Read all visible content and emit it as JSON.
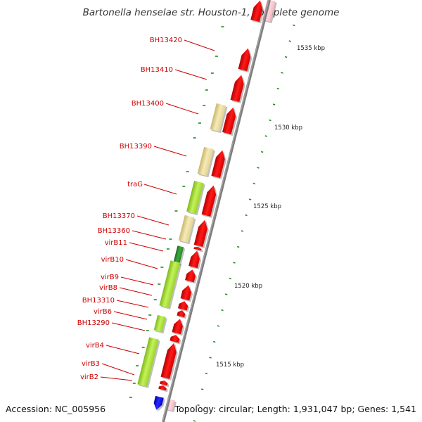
{
  "title": "Bartonella henselae str. Houston-1, complete genome",
  "footer": {
    "accession": "Accession: NC_005956",
    "topology": "Topology: circular; Length: 1,931,047 bp; Genes: 1,541"
  },
  "colors": {
    "backbone": "#808080",
    "gene_label": "#cc0000",
    "tick": "#1e8c1e",
    "cds_forward": "#ee0000",
    "cds_reverse_yellow": "#eedf9a",
    "cds_reverse_green": "#a6e02e",
    "cds_reverse_darkgreen": "#2e8b2e",
    "gene_pink": "#ffc0cb",
    "gene_blue": "#0000ee"
  },
  "kbp_labels": [
    "1535 kbp",
    "1530 kbp",
    "1525 kbp",
    "1520 kbp",
    "1515 kbp"
  ],
  "gene_labels": [
    "BH13420",
    "BH13410",
    "BH13400",
    "BH13390",
    "traG",
    "BH13370",
    "BH13360",
    "virB11",
    "virB10",
    "virB9",
    "virB8",
    "BH13310",
    "virB6",
    "BH13290",
    "virB4",
    "virB3",
    "virB2"
  ]
}
